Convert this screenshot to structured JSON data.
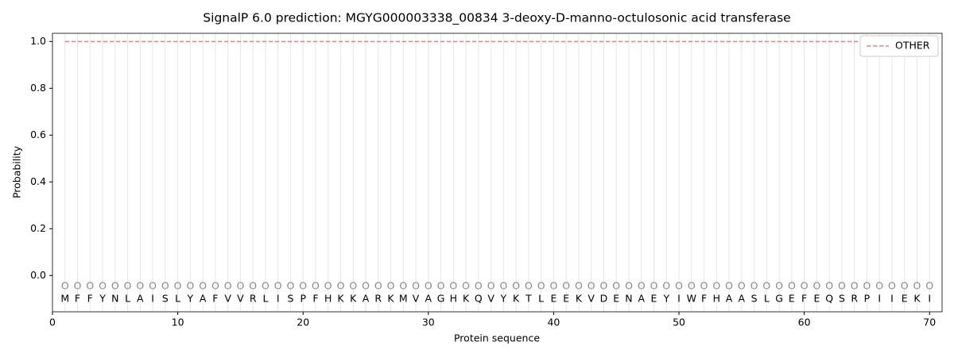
{
  "chart_data": {
    "type": "line",
    "title": "SignalP 6.0 prediction: MGYG000003338_00834 3-deoxy-D-manno-octulosonic acid transferase",
    "xlabel": "Protein sequence",
    "ylabel": "Probability",
    "x": [
      1,
      2,
      3,
      4,
      5,
      6,
      7,
      8,
      9,
      10,
      11,
      12,
      13,
      14,
      15,
      16,
      17,
      18,
      19,
      20,
      21,
      22,
      23,
      24,
      25,
      26,
      27,
      28,
      29,
      30,
      31,
      32,
      33,
      34,
      35,
      36,
      37,
      38,
      39,
      40,
      41,
      42,
      43,
      44,
      45,
      46,
      47,
      48,
      49,
      50,
      51,
      52,
      53,
      54,
      55,
      56,
      57,
      58,
      59,
      60,
      61,
      62,
      63,
      64,
      65,
      66,
      67,
      68,
      69,
      70
    ],
    "sequence": [
      "M",
      "F",
      "F",
      "Y",
      "N",
      "L",
      "A",
      "I",
      "S",
      "L",
      "Y",
      "A",
      "F",
      "V",
      "V",
      "R",
      "L",
      "I",
      "S",
      "P",
      "F",
      "H",
      "K",
      "K",
      "A",
      "R",
      "K",
      "M",
      "V",
      "A",
      "G",
      "H",
      "K",
      "Q",
      "V",
      "Y",
      "K",
      "T",
      "L",
      "E",
      "E",
      "K",
      "V",
      "D",
      "E",
      "N",
      "A",
      "E",
      "Y",
      "I",
      "W",
      "F",
      "H",
      "A",
      "A",
      "S",
      "L",
      "G",
      "E",
      "F",
      "E",
      "Q",
      "S",
      "R",
      "P",
      "I",
      "I",
      "E",
      "K",
      "I"
    ],
    "region_labels": [
      "O",
      "O",
      "O",
      "O",
      "O",
      "O",
      "O",
      "O",
      "O",
      "O",
      "O",
      "O",
      "O",
      "O",
      "O",
      "O",
      "O",
      "O",
      "O",
      "O",
      "O",
      "O",
      "O",
      "O",
      "O",
      "O",
      "O",
      "O",
      "O",
      "O",
      "O",
      "O",
      "O",
      "O",
      "O",
      "O",
      "O",
      "O",
      "O",
      "O",
      "O",
      "O",
      "O",
      "O",
      "O",
      "O",
      "O",
      "O",
      "O",
      "O",
      "O",
      "O",
      "O",
      "O",
      "O",
      "O",
      "O",
      "O",
      "O",
      "O",
      "O",
      "O",
      "O",
      "O",
      "O",
      "O",
      "O",
      "O",
      "O",
      "O"
    ],
    "series": [
      {
        "name": "OTHER",
        "color": "#f08080",
        "dash": true,
        "values": [
          1,
          1,
          1,
          1,
          1,
          1,
          1,
          1,
          1,
          1,
          1,
          1,
          1,
          1,
          1,
          1,
          1,
          1,
          1,
          1,
          1,
          1,
          1,
          1,
          1,
          1,
          1,
          1,
          1,
          1,
          1,
          1,
          1,
          1,
          1,
          1,
          1,
          1,
          1,
          1,
          1,
          1,
          1,
          1,
          1,
          1,
          1,
          1,
          1,
          1,
          1,
          1,
          1,
          1,
          1,
          1,
          1,
          1,
          1,
          1,
          1,
          1,
          1,
          1,
          1,
          1,
          1,
          1,
          1,
          1
        ]
      }
    ],
    "xlim": [
      0,
      71
    ],
    "ylim": [
      -0.155,
      1.035
    ],
    "xticks": [
      0,
      10,
      20,
      30,
      40,
      50,
      60,
      70
    ],
    "yticks": [
      {
        "value": 0,
        "label": "0.0"
      },
      {
        "value": 0.2,
        "label": "0.2"
      },
      {
        "value": 0.4,
        "label": "0.4"
      },
      {
        "value": 0.6,
        "label": "0.6"
      },
      {
        "value": 0.8,
        "label": "0.8"
      },
      {
        "value": 1,
        "label": "1.0"
      }
    ],
    "legend": "upper right"
  }
}
